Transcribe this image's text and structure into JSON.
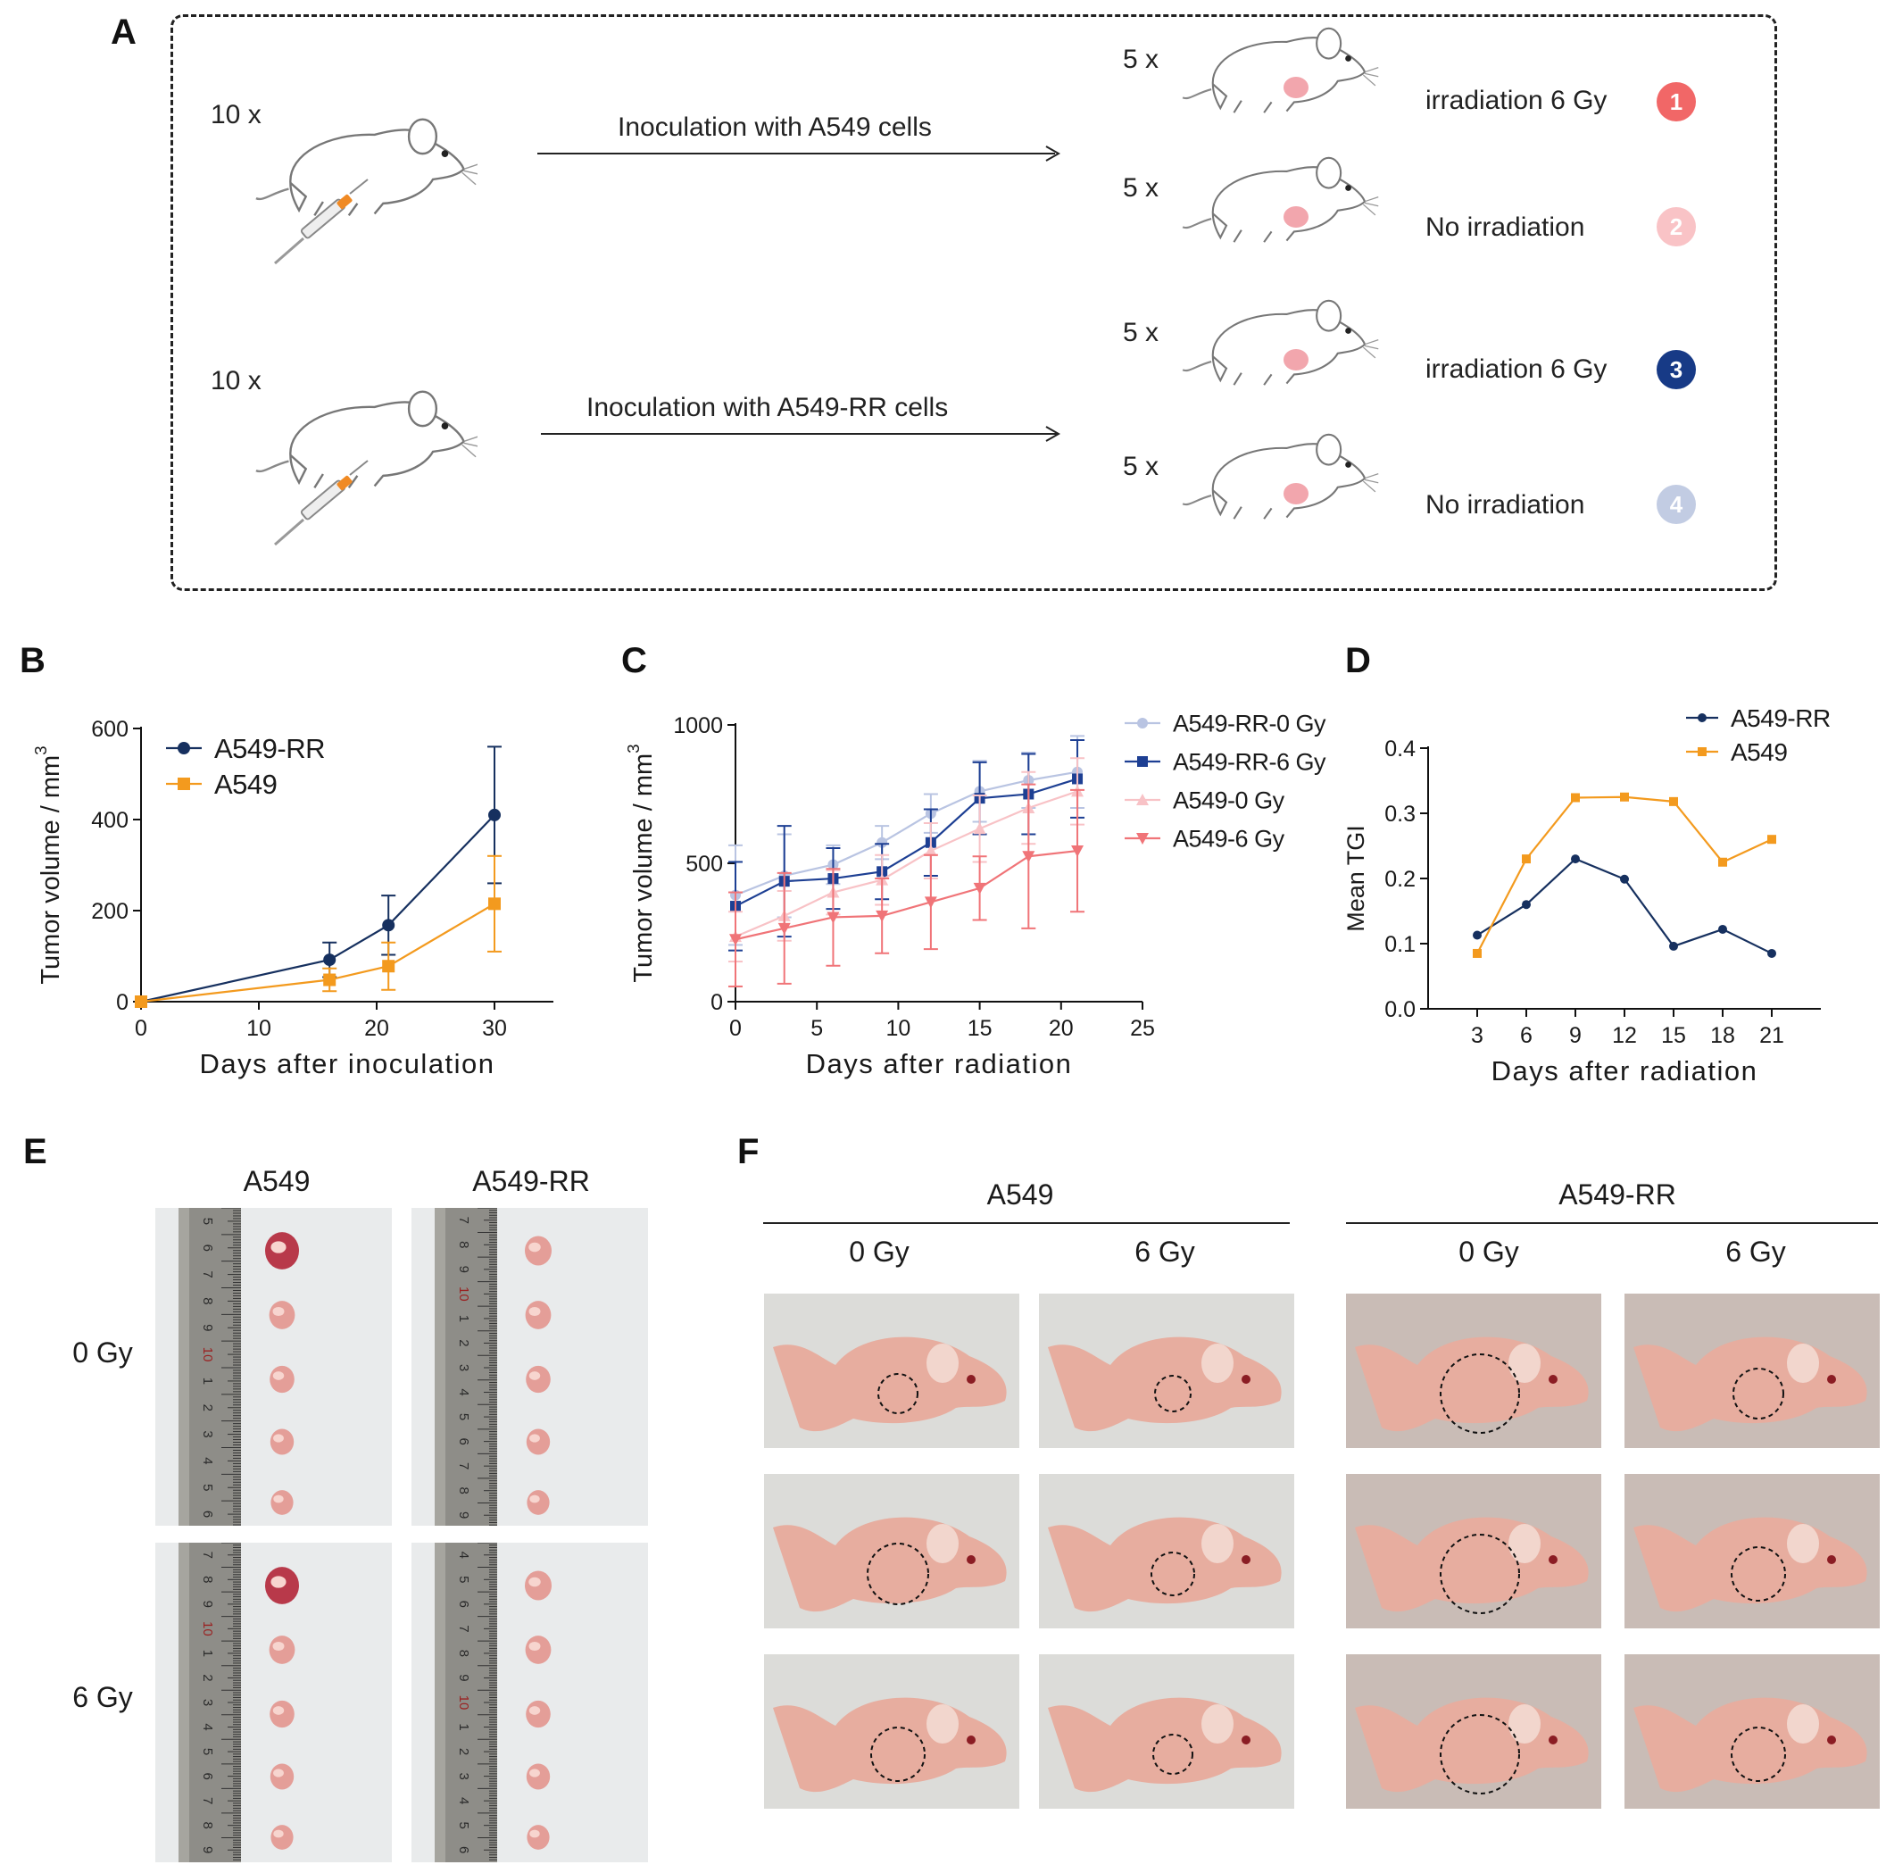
{
  "panel_labels": [
    "A",
    "B",
    "C",
    "D",
    "E",
    "F"
  ],
  "panel_a": {
    "groups": [
      {
        "count": "10 x",
        "arrow_label": "Inoculation with A549 cells"
      },
      {
        "count": "10 x",
        "arrow_label": "Inoculation with  A549-RR cells"
      }
    ],
    "arms": [
      {
        "count": "5 x",
        "label": "irradiation 6 Gy",
        "badge": "1",
        "color": "#f16767"
      },
      {
        "count": "5 x",
        "label": "No irradiation",
        "badge": "2",
        "color": "#f9c3c6"
      },
      {
        "count": "5 x",
        "label": "irradiation 6 Gy",
        "badge": "3",
        "color": "#173a86"
      },
      {
        "count": "5 x",
        "label": "No irradiation",
        "badge": "4",
        "color": "#c2cce3"
      }
    ]
  },
  "chart_data": [
    {
      "id": "B",
      "type": "line",
      "xlabel": "Days after inoculation",
      "ylabel": "Tumor volume / mm",
      "ylabel_sup": "3",
      "xlim": [
        0,
        35
      ],
      "ylim": [
        0,
        600
      ],
      "xticks": [
        0,
        10,
        20,
        30
      ],
      "yticks": [
        0,
        200,
        400,
        600
      ],
      "legend": "top-left",
      "series": [
        {
          "name": "A549-RR",
          "color": "#16305f",
          "marker": "circle",
          "x": [
            0,
            16,
            21,
            30
          ],
          "y": [
            0,
            92,
            168,
            410
          ],
          "err": [
            0,
            38,
            65,
            150
          ]
        },
        {
          "name": "A549",
          "color": "#f39a1e",
          "marker": "square",
          "x": [
            0,
            16,
            21,
            30
          ],
          "y": [
            0,
            48,
            78,
            215
          ],
          "err": [
            0,
            25,
            52,
            105
          ]
        }
      ]
    },
    {
      "id": "C",
      "type": "line",
      "xlabel": "Days after radiation",
      "ylabel": "Tumor volume / mm",
      "ylabel_sup": "3",
      "xlim": [
        0,
        25
      ],
      "ylim": [
        0,
        1000
      ],
      "xticks": [
        0,
        5,
        10,
        15,
        20,
        25
      ],
      "yticks": [
        0,
        500,
        1000
      ],
      "legend": "right",
      "series": [
        {
          "name": "A549-RR-0 Gy",
          "color": "#b9c4e2",
          "marker": "circle",
          "x": [
            0,
            3,
            6,
            9,
            12,
            15,
            18,
            21
          ],
          "y": [
            385,
            455,
            495,
            575,
            680,
            760,
            800,
            830
          ],
          "err": [
            180,
            150,
            70,
            60,
            70,
            110,
            100,
            130
          ]
        },
        {
          "name": "A549-RR-6 Gy",
          "color": "#1d3f93",
          "marker": "square",
          "x": [
            0,
            3,
            6,
            9,
            12,
            15,
            18,
            21
          ],
          "y": [
            345,
            435,
            445,
            470,
            575,
            735,
            750,
            805
          ],
          "err": [
            160,
            200,
            110,
            100,
            120,
            130,
            145,
            140
          ]
        },
        {
          "name": "A549-0 Gy",
          "color": "#f8c2c6",
          "marker": "triangle-up",
          "x": [
            0,
            3,
            6,
            9,
            12,
            15,
            18,
            21
          ],
          "y": [
            235,
            310,
            395,
            440,
            545,
            625,
            700,
            760
          ],
          "err": [
            90,
            90,
            80,
            90,
            100,
            120,
            130,
            120
          ]
        },
        {
          "name": "A549-6 Gy",
          "color": "#f07478",
          "marker": "triangle-down",
          "x": [
            0,
            3,
            6,
            9,
            12,
            15,
            18,
            21
          ],
          "y": [
            225,
            265,
            305,
            310,
            360,
            410,
            525,
            545
          ],
          "err": [
            170,
            200,
            175,
            135,
            170,
            115,
            260,
            220
          ]
        }
      ]
    },
    {
      "id": "D",
      "type": "line",
      "xlabel": "Days after radiation",
      "ylabel": "Mean TGI",
      "xlim": [
        0,
        24
      ],
      "ylim": [
        0,
        0.4
      ],
      "xticks": [
        3,
        6,
        9,
        12,
        15,
        18,
        21
      ],
      "yticks": [
        0.0,
        0.1,
        0.2,
        0.3,
        0.4
      ],
      "ytick_labels": [
        "0.0",
        "0.1",
        "0.2",
        "0.3",
        "0.4"
      ],
      "legend": "top-right",
      "series": [
        {
          "name": "A549-RR",
          "color": "#16305f",
          "marker": "circle",
          "x": [
            3,
            6,
            9,
            12,
            15,
            18,
            21
          ],
          "y": [
            0.113,
            0.16,
            0.23,
            0.199,
            0.096,
            0.122,
            0.085
          ]
        },
        {
          "name": "A549",
          "color": "#f39a1e",
          "marker": "square",
          "x": [
            3,
            6,
            9,
            12,
            15,
            18,
            21
          ],
          "y": [
            0.085,
            0.23,
            0.324,
            0.325,
            0.318,
            0.225,
            0.26
          ]
        }
      ]
    }
  ],
  "panel_e": {
    "col_headers": [
      "A549",
      "A549-RR"
    ],
    "row_labels": [
      "0 Gy",
      "6 Gy"
    ],
    "ruler_marks": {
      "a549_0": [
        "5",
        "6",
        "7",
        "8",
        "9",
        "10",
        "1",
        "2",
        "3",
        "4",
        "5",
        "6"
      ],
      "rr_0": [
        "7",
        "8",
        "9",
        "10",
        "1",
        "2",
        "3",
        "4",
        "5",
        "6",
        "7",
        "8",
        "9"
      ],
      "a549_6": [
        "7",
        "8",
        "9",
        "10",
        "1",
        "2",
        "3",
        "4",
        "5",
        "6",
        "7",
        "8",
        "9"
      ],
      "rr_6": [
        "4",
        "5",
        "6",
        "7",
        "8",
        "9",
        "10",
        "1",
        "2",
        "3",
        "4",
        "5",
        "6"
      ]
    }
  },
  "panel_f": {
    "group_headers": [
      "A549",
      "A549-RR"
    ],
    "dose_headers": [
      "0 Gy",
      "6 Gy",
      "0 Gy",
      "6 Gy"
    ]
  }
}
